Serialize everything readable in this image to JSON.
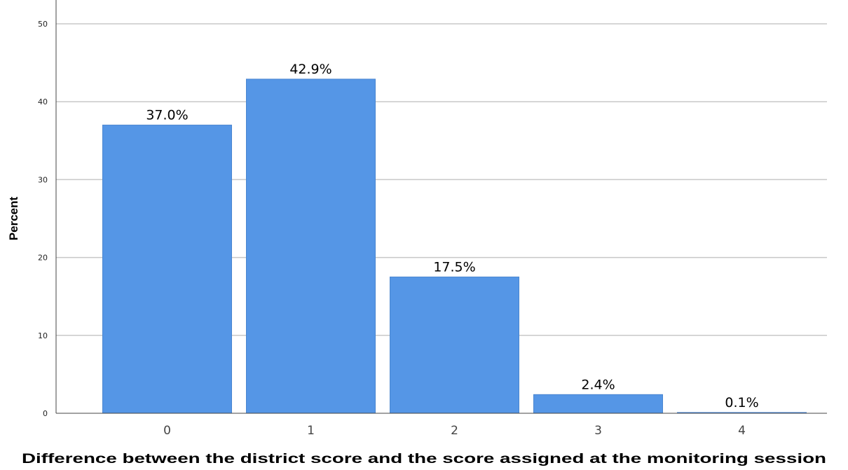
{
  "chart_data": {
    "type": "bar",
    "title": "",
    "xlabel": "Difference between the district score and the score assigned at the monitoring session",
    "ylabel": "Percent",
    "categories": [
      "0",
      "1",
      "2",
      "3",
      "4"
    ],
    "values": [
      37.0,
      42.9,
      17.5,
      2.4,
      0.1
    ],
    "data_labels": [
      "37.0%",
      "42.9%",
      "17.5%",
      "2.4%",
      "0.1%"
    ],
    "yticks": [
      0,
      10,
      20,
      30,
      40,
      50
    ],
    "ylim": [
      0,
      50
    ],
    "grid": true,
    "bar_color": "#5596e6"
  }
}
